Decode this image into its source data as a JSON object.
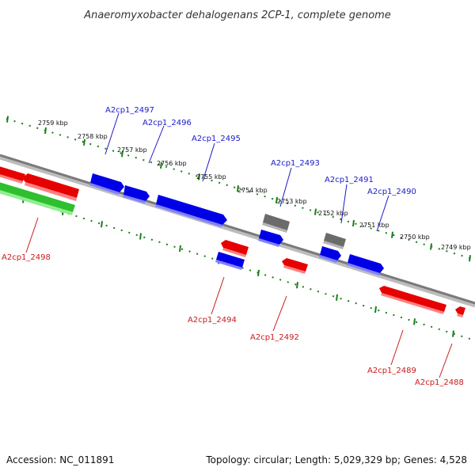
{
  "header": {
    "title": "Anaeromyxobacter dehalogenans 2CP-1, complete genome"
  },
  "footer": {
    "accession": "Accession: NC_011891",
    "summary": "Topology: circular; Length: 5,029,329 bp; Genes: 4,528"
  },
  "ticks": {
    "labels": [
      "2759 kbp",
      "2758 kbp",
      "2757 kbp",
      "2756 kbp",
      "2755 kbp",
      "2754 kbp",
      "2753 kbp",
      "2752 kbp",
      "2751 kbp",
      "2750 kbp",
      "2749 kbp"
    ]
  },
  "genes": {
    "labels": [
      {
        "name": "A2cp1_2497",
        "strand": "forward"
      },
      {
        "name": "A2cp1_2496",
        "strand": "forward"
      },
      {
        "name": "A2cp1_2495",
        "strand": "forward"
      },
      {
        "name": "A2cp1_2493",
        "strand": "forward"
      },
      {
        "name": "A2cp1_2491",
        "strand": "forward"
      },
      {
        "name": "A2cp1_2490",
        "strand": "forward"
      },
      {
        "name": "A2cp1_2498",
        "strand": "reverse"
      },
      {
        "name": "A2cp1_2494",
        "strand": "reverse"
      },
      {
        "name": "A2cp1_2492",
        "strand": "reverse"
      },
      {
        "name": "A2cp1_2489",
        "strand": "reverse"
      },
      {
        "name": "A2cp1_2488",
        "strand": "reverse"
      }
    ]
  },
  "colors": {
    "forward": "#0000e6",
    "reverse": "#e60000",
    "other": "#6b6b6b",
    "rna": "#2fbf2f",
    "backbone": "#7a7a7a",
    "tick": "#1a7f1a",
    "forward_label": "#1a1acc",
    "reverse_label": "#cc1a1a"
  }
}
